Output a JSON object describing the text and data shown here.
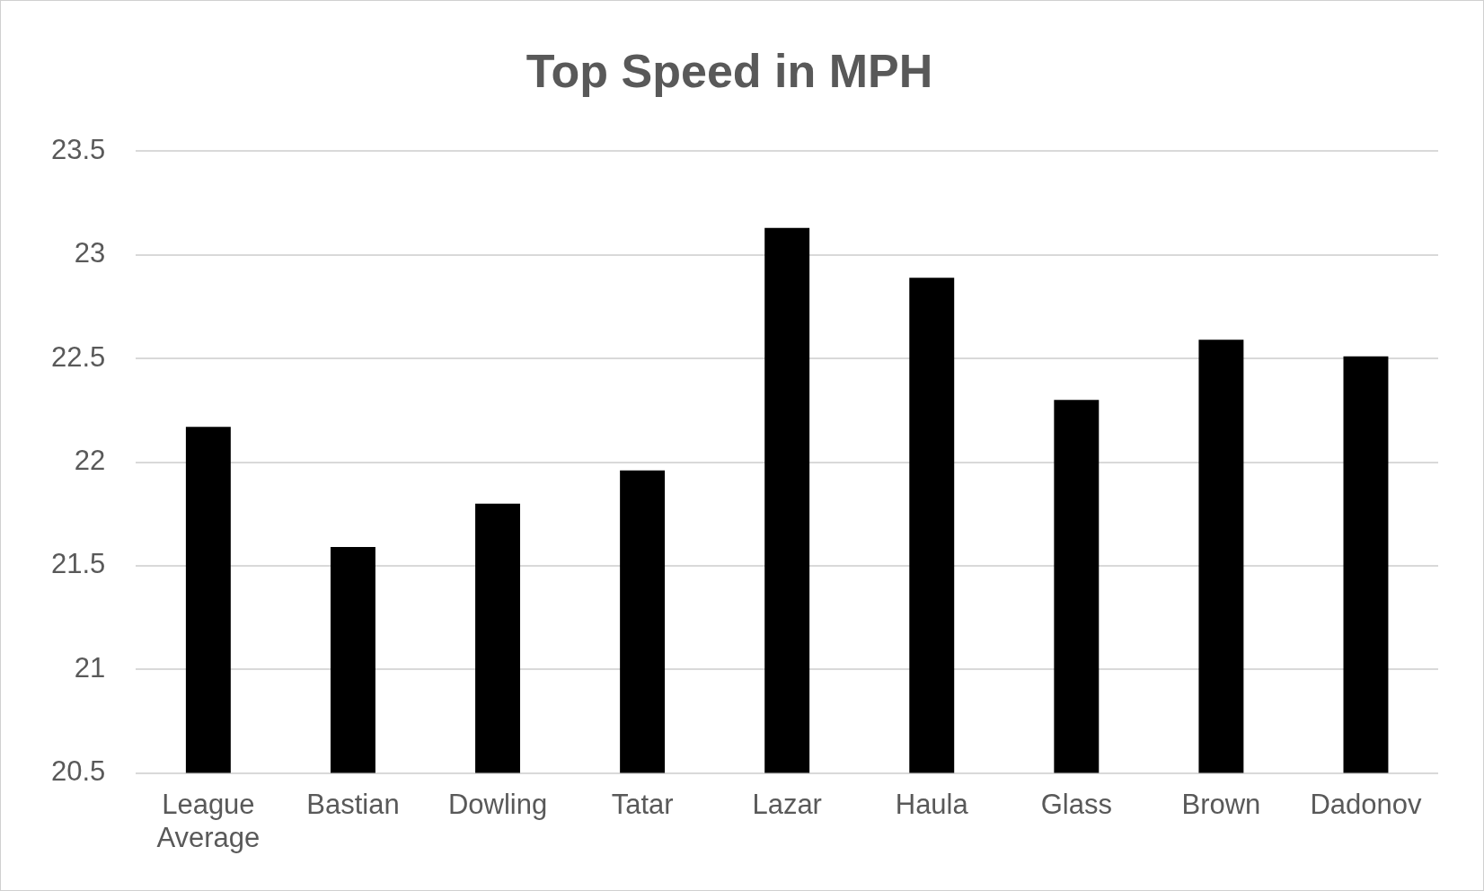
{
  "chart_data": {
    "type": "bar",
    "title": "Top Speed in MPH",
    "categories": [
      "League Average",
      "Bastian",
      "Dowling",
      "Tatar",
      "Lazar",
      "Haula",
      "Glass",
      "Brown",
      "Dadonov"
    ],
    "values": [
      22.17,
      21.59,
      21.8,
      21.96,
      23.13,
      22.89,
      22.3,
      22.59,
      22.51
    ],
    "color": "#000000",
    "ylim": [
      20.5,
      23.5
    ],
    "yticks": [
      20.5,
      21,
      21.5,
      22,
      22.5,
      23,
      23.5
    ],
    "grid": "y",
    "legend": false
  }
}
